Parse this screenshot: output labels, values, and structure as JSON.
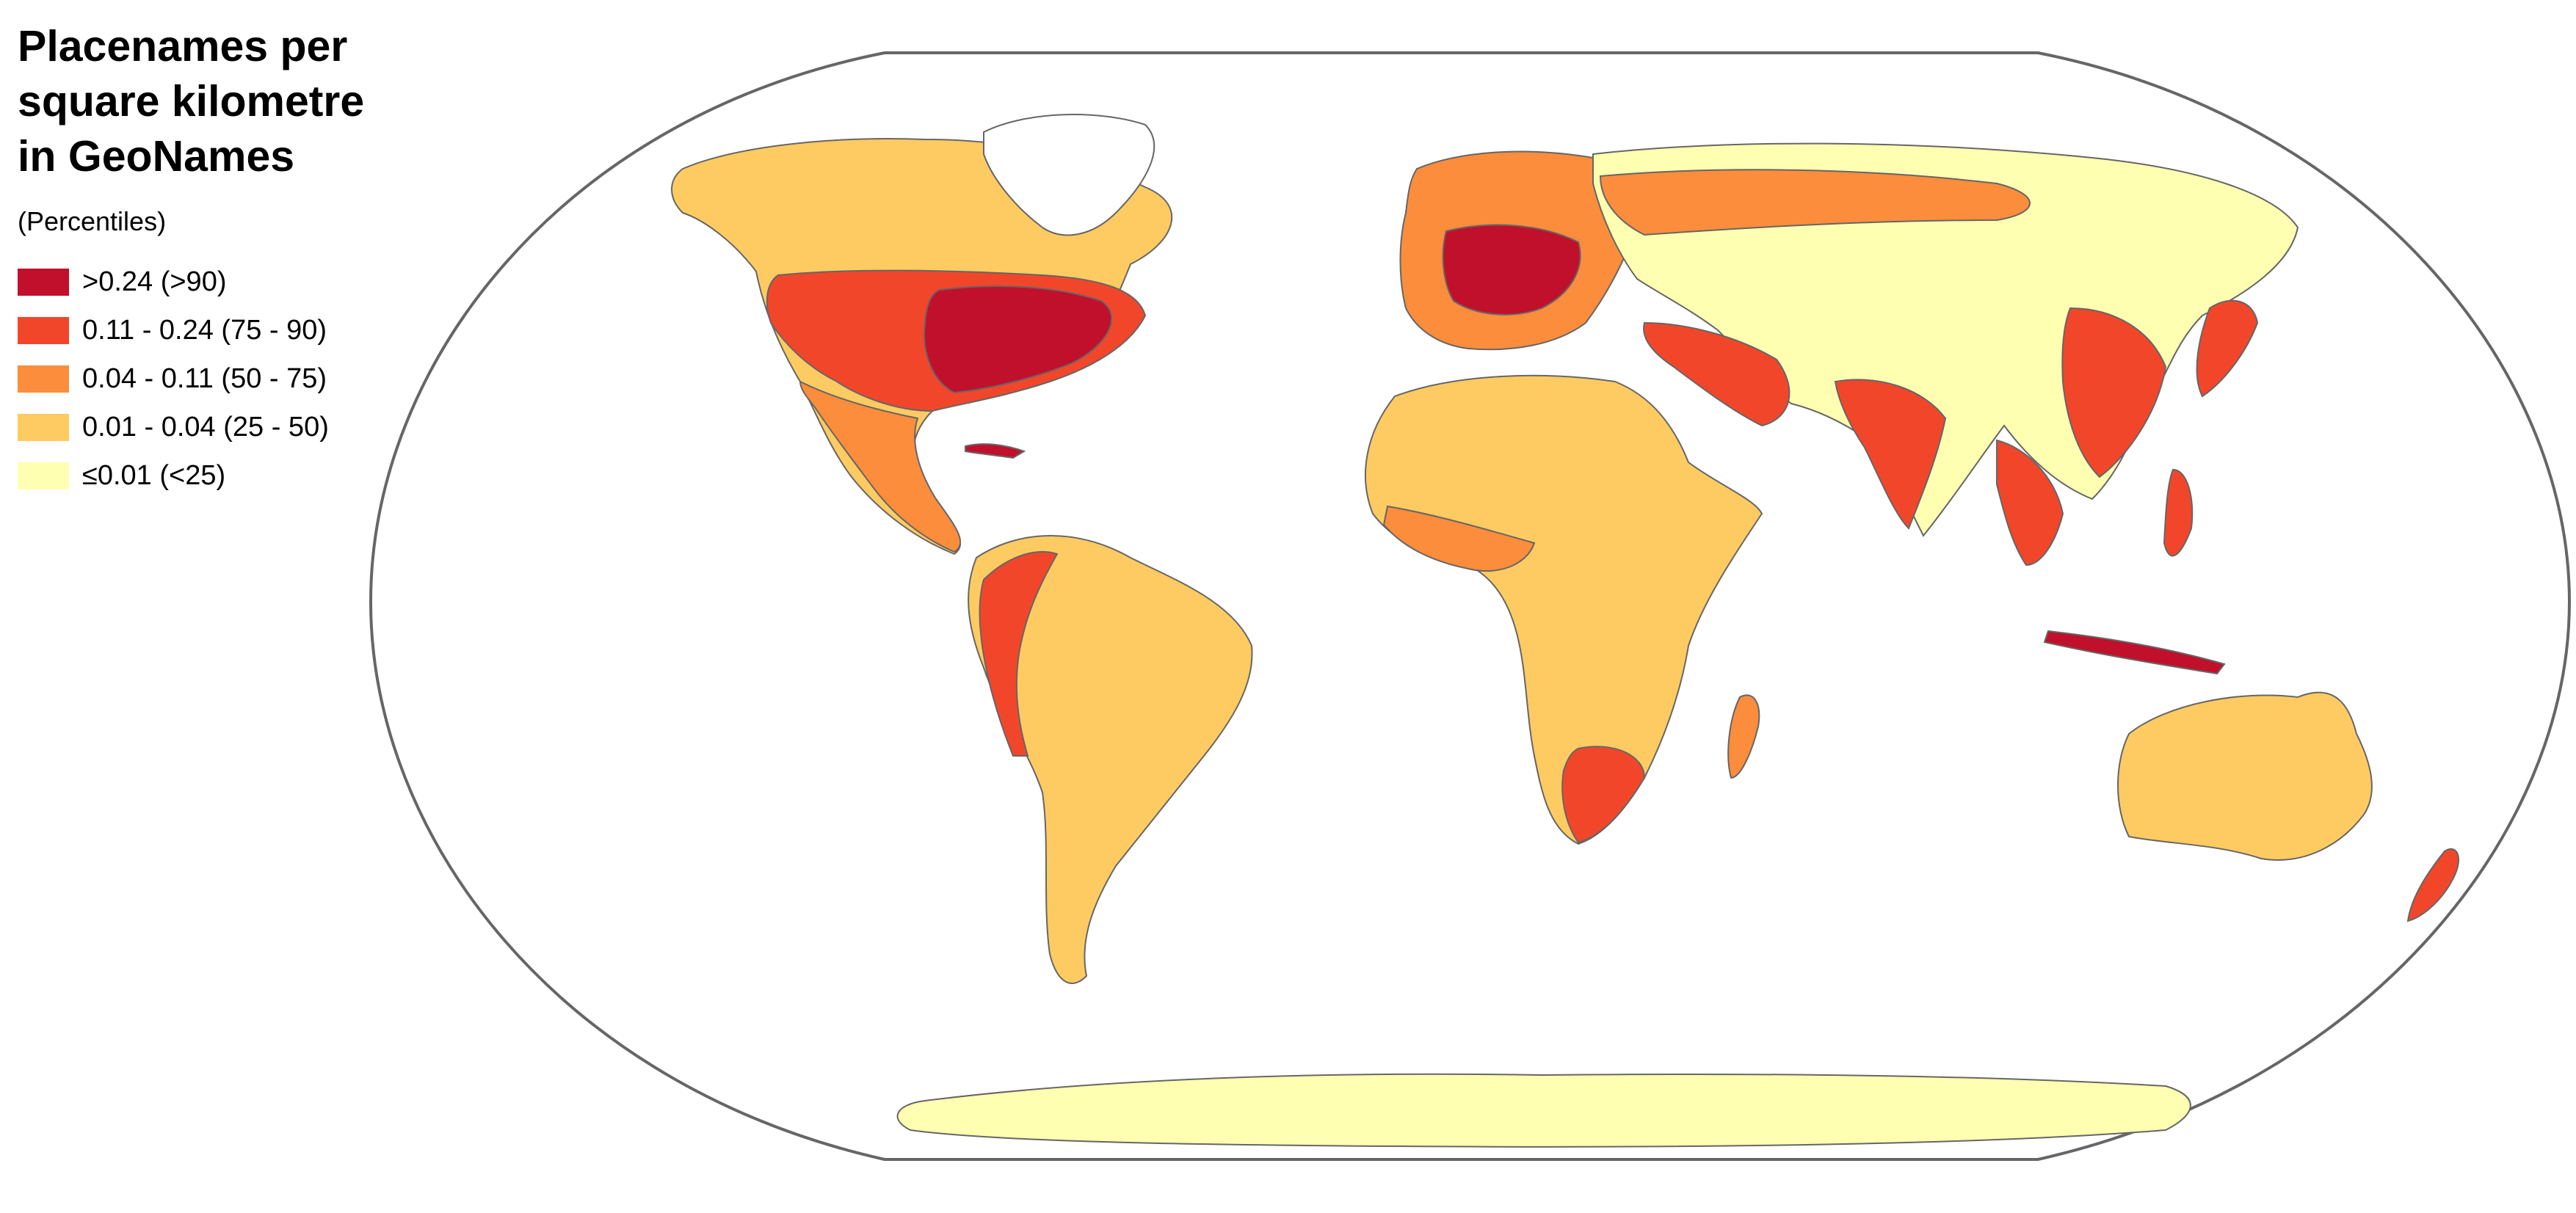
{
  "title_lines": [
    "Placenames per",
    "square kilometre",
    "in GeoNames"
  ],
  "legend": {
    "subtitle": "(Percentiles)",
    "items": [
      {
        "label": ">0.24 (>90)",
        "color": "#c0102c"
      },
      {
        "label": "0.11 - 0.24 (75 - 90)",
        "color": "#f2462b"
      },
      {
        "label": "0.04 - 0.11 (50 - 75)",
        "color": "#fb8d3c"
      },
      {
        "label": "0.01 - 0.04 (25 - 50)",
        "color": "#fecb62"
      },
      {
        "label": "≤0.01 (<25)",
        "color": "#ffffb2"
      }
    ]
  },
  "colors": {
    "outline": "#666666",
    "background": "#ffffff"
  }
}
